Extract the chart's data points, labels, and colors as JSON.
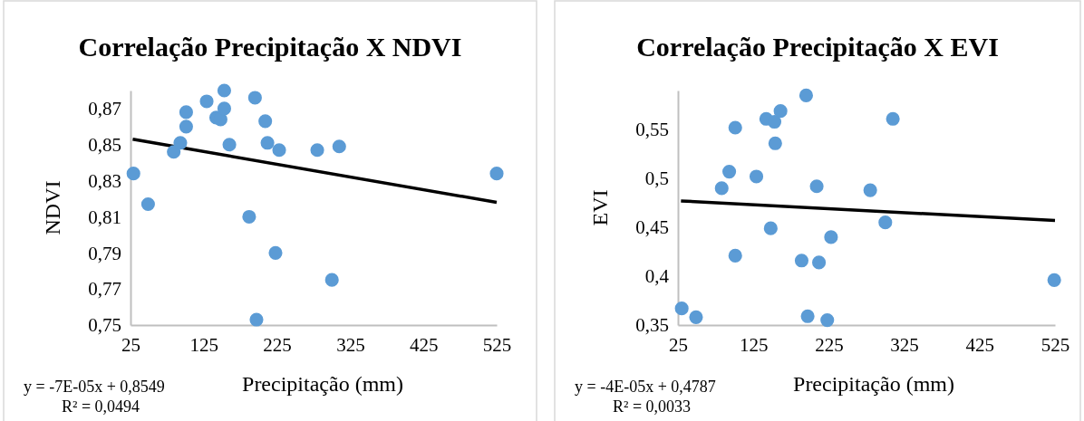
{
  "chart_data": [
    {
      "type": "scatter",
      "title": "Correlação Precipitação X NDVI",
      "xlabel": "Precipitação (mm)",
      "ylabel": "NDVI",
      "xlim": [
        25,
        525
      ],
      "xticks": [
        25,
        125,
        225,
        325,
        425,
        525
      ],
      "ylim": [
        0.75,
        0.88
      ],
      "yticks": [
        {
          "value": 0.75,
          "label": "0,75"
        },
        {
          "value": 0.77,
          "label": "0,77"
        },
        {
          "value": 0.79,
          "label": "0,79"
        },
        {
          "value": 0.81,
          "label": "0,81"
        },
        {
          "value": 0.83,
          "label": "0,83"
        },
        {
          "value": 0.85,
          "label": "0,85"
        },
        {
          "value": 0.87,
          "label": "0,87"
        }
      ],
      "series": [
        {
          "marker": "circle",
          "color": "#5b9bd5",
          "x": [
            29,
            49,
            84,
            93,
            101,
            101,
            129,
            142,
            148,
            153,
            153,
            160,
            187,
            195,
            197,
            209,
            212,
            223,
            228,
            280,
            300,
            310,
            525
          ],
          "values": [
            0.834,
            0.817,
            0.846,
            0.851,
            0.868,
            0.86,
            0.874,
            0.865,
            0.864,
            0.88,
            0.87,
            0.85,
            0.81,
            0.876,
            0.753,
            0.863,
            0.851,
            0.79,
            0.847,
            0.847,
            0.775,
            0.849,
            0.834
          ]
        },
        {
          "type": "line",
          "color": "#000000",
          "x": [
            28,
            525
          ],
          "values": [
            0.853,
            0.818
          ]
        }
      ],
      "annotations": [
        "y = -7E-05x + 0,8549",
        "R² = 0,0494"
      ]
    },
    {
      "type": "scatter",
      "title": "Correlação Precipitação X EVI",
      "xlabel": "Precipitação (mm)",
      "ylabel": "EVI",
      "xlim": [
        25,
        525
      ],
      "xticks": [
        25,
        125,
        225,
        325,
        425,
        525
      ],
      "ylim": [
        0.35,
        0.59
      ],
      "yticks": [
        {
          "value": 0.35,
          "label": "0,35"
        },
        {
          "value": 0.4,
          "label": "0,4"
        },
        {
          "value": 0.45,
          "label": "0,45"
        },
        {
          "value": 0.5,
          "label": "0,5"
        },
        {
          "value": 0.55,
          "label": "0,55"
        }
      ],
      "series": [
        {
          "marker": "circle",
          "color": "#5b9bd5",
          "x": [
            30,
            49,
            83,
            93,
            101,
            101,
            129,
            142,
            148,
            153,
            154,
            161,
            189,
            195,
            197,
            209,
            212,
            223,
            228,
            280,
            300,
            310,
            524
          ],
          "values": [
            0.367,
            0.358,
            0.49,
            0.507,
            0.552,
            0.421,
            0.502,
            0.561,
            0.449,
            0.558,
            0.536,
            0.569,
            0.416,
            0.585,
            0.359,
            0.492,
            0.414,
            0.355,
            0.44,
            0.488,
            0.455,
            0.561,
            0.396
          ]
        },
        {
          "type": "line",
          "color": "#000000",
          "x": [
            29,
            525
          ],
          "values": [
            0.477,
            0.457
          ]
        }
      ],
      "annotations": [
        "y = -4E-05x + 0,4787",
        "R² = 0,0033"
      ]
    }
  ]
}
